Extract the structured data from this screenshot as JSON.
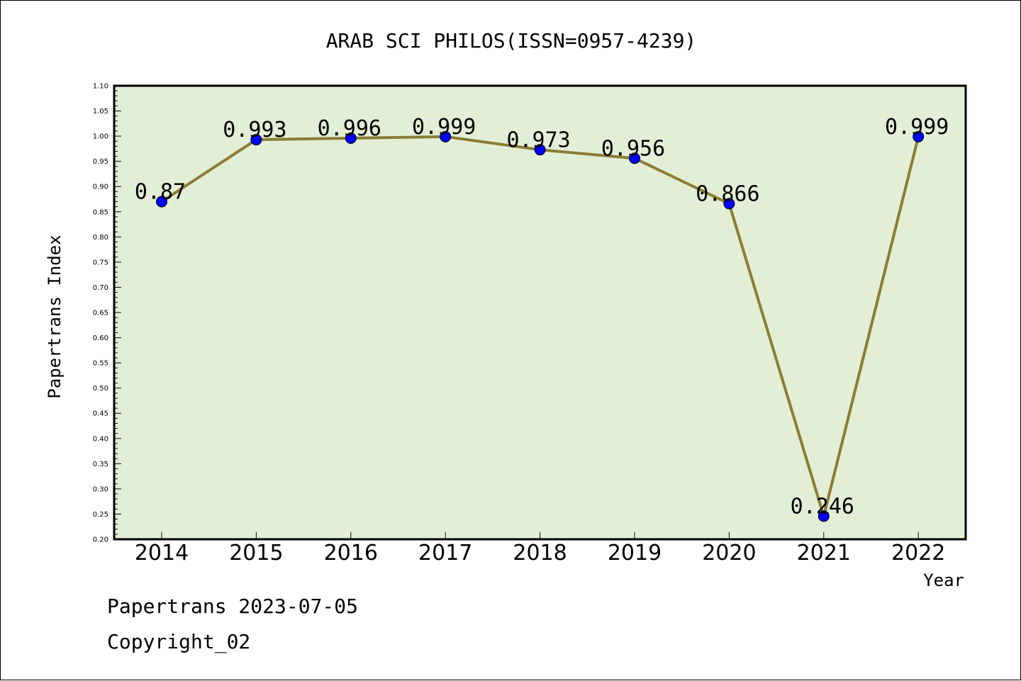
{
  "chart_data": {
    "type": "line",
    "title": "ARAB SCI PHILOS(ISSN=0957-4239)",
    "xlabel": "Year",
    "ylabel": "Papertrans Index",
    "categories": [
      "2014",
      "2015",
      "2016",
      "2017",
      "2018",
      "2019",
      "2020",
      "2021",
      "2022"
    ],
    "series": [
      {
        "values": [
          0.87,
          0.993,
          0.996,
          0.999,
          0.973,
          0.956,
          0.866,
          0.246,
          0.999
        ],
        "labels": [
          "0.87",
          "0.993",
          "0.996",
          "0.999",
          "0.973",
          "0.956",
          "0.866",
          "0.246",
          "0.999"
        ]
      }
    ],
    "ylim": [
      0.2,
      1.1
    ],
    "ytick_labels": [
      "0.20",
      "0.25",
      "0.30",
      "0.35",
      "0.40",
      "0.45",
      "0.50",
      "0.55",
      "0.60",
      "0.65",
      "0.70",
      "0.75",
      "0.80",
      "0.85",
      "0.90",
      "0.95",
      "1.00",
      "1.05",
      "1.10"
    ],
    "grid": false,
    "colors": {
      "plot_background": "#e2efd6",
      "line": "#8b7d35",
      "marker": "#0000ff"
    }
  },
  "footer": {
    "source": "Papertrans 2023-07-05",
    "copyright": "Copyright_02"
  }
}
